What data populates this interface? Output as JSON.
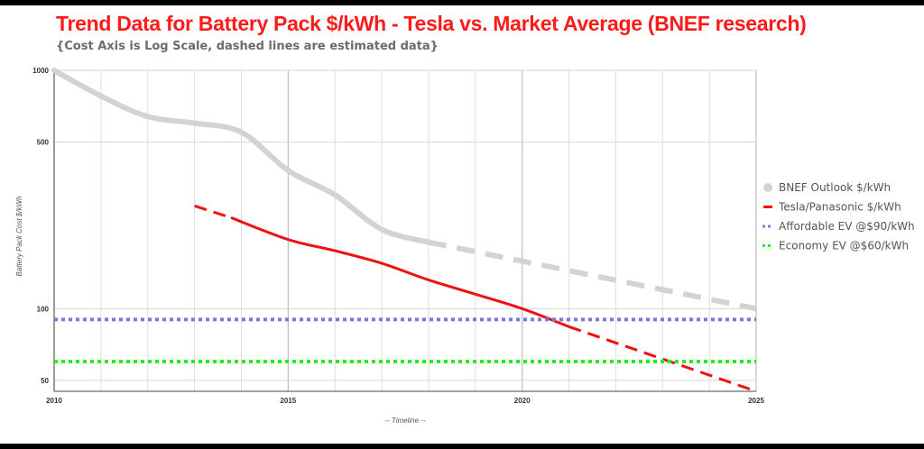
{
  "chart_data": {
    "type": "line",
    "title": "Trend Data for Battery Pack $/kWh  - Tesla vs. Market Average (BNEF research)",
    "subtitle": "{Cost Axis is Log Scale, dashed lines are estimated data}",
    "xlabel": "-- Timeline --",
    "ylabel": "Battery Pack Cost $/kWh",
    "xlim": [
      2010,
      2025
    ],
    "ylim": [
      45,
      1000
    ],
    "yscale": "log",
    "x_ticks": [
      2010,
      2015,
      2020,
      2025
    ],
    "x_tick_labels": [
      "2010",
      "2015",
      "2020",
      "2025"
    ],
    "y_ticks": [
      1000,
      500,
      100,
      50
    ],
    "y_tick_labels": [
      "1000",
      "500",
      "100",
      "50"
    ],
    "grid": true,
    "legend_position": "right",
    "series": [
      {
        "name": "BNEF Outlook $/kWh",
        "color": "#d3d3d3",
        "style": "solid",
        "x": [
          2010,
          2011,
          2012,
          2013,
          2014,
          2015,
          2016,
          2017,
          2018
        ],
        "y": [
          1000,
          780,
          640,
          600,
          550,
          380,
          300,
          215,
          190
        ]
      },
      {
        "name": "BNEF Outlook $/kWh (estimated)",
        "color": "#d3d3d3",
        "style": "dashed",
        "x": [
          2018,
          2025
        ],
        "y": [
          190,
          100
        ]
      },
      {
        "name": "Tesla/Panasonic $/kWh (estimated)",
        "color": "#ee1111",
        "style": "dashed",
        "x": [
          2013,
          2013.8
        ],
        "y": [
          270,
          240
        ]
      },
      {
        "name": "Tesla/Panasonic $/kWh",
        "color": "#ee1111",
        "style": "solid",
        "x": [
          2013.8,
          2015,
          2016,
          2017,
          2018,
          2019,
          2020,
          2021
        ],
        "y": [
          240,
          195,
          175,
          155,
          132,
          115,
          100,
          84
        ]
      },
      {
        "name": "Tesla/Panasonic $/kWh (estimated)",
        "color": "#ee1111",
        "style": "dashed",
        "x": [
          2021,
          2025
        ],
        "y": [
          84,
          45
        ]
      },
      {
        "name": "Affordable EV @$90/kWh",
        "color": "#7a7adb",
        "style": "dotted",
        "x": [
          2010,
          2025
        ],
        "y": [
          90,
          90
        ]
      },
      {
        "name": "Economy EV @$60/kWh",
        "color": "#22ee22",
        "style": "dotted",
        "x": [
          2010,
          2025
        ],
        "y": [
          60,
          60
        ]
      }
    ],
    "legend": [
      {
        "label": "BNEF Outlook $/kWh",
        "color": "#d3d3d3",
        "marker": "dot"
      },
      {
        "label": "Tesla/Panasonic $/kWh",
        "color": "#ee1111",
        "marker": "dash"
      },
      {
        "label": "Affordable EV @$90/kWh",
        "color": "#7a7adb",
        "marker": "dotted"
      },
      {
        "label": "Economy EV @$60/kWh",
        "color": "#22ee22",
        "marker": "dotted"
      }
    ]
  }
}
